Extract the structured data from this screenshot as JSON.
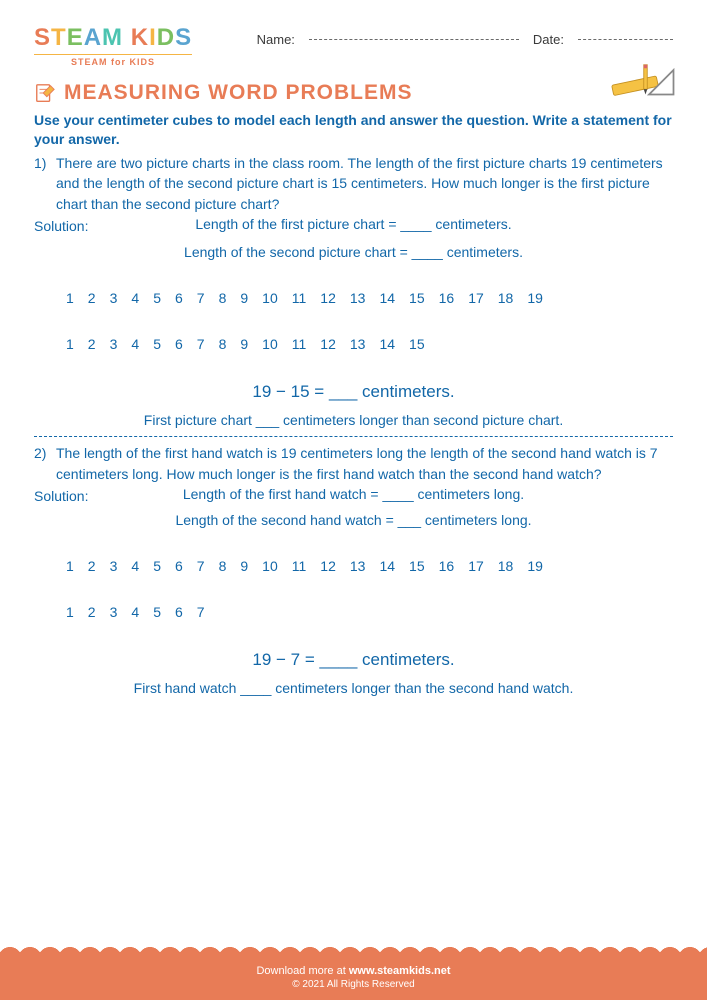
{
  "header": {
    "logo_letters": [
      "S",
      "T",
      "E",
      "A",
      "M",
      " ",
      "K",
      "I",
      "D",
      "S"
    ],
    "logo_sub": "STEAM for KIDS",
    "name_label": "Name:",
    "date_label": "Date:"
  },
  "title": "MEASURING WORD PROBLEMS",
  "instructions": "Use your centimeter cubes to model each length and answer the question. Write a statement for your answer.",
  "problems": [
    {
      "num": "1)",
      "text": "There are two picture charts in the class room. The length of the first picture charts 19 centimeters and the length of the second picture chart is 15 centimeters. How much longer is the first picture chart than the second picture chart?",
      "solution_label": "Solution:",
      "line1": "Length of the first picture chart = ____ centimeters.",
      "line2": "Length of the second picture chart = ____ centimeters.",
      "row1_count": 19,
      "row2_count": 15,
      "eq": "19 − 15 = ___ centimeters.",
      "final": "First picture chart ___ centimeters longer than second picture chart."
    },
    {
      "num": "2)",
      "text": "The length of the first hand watch is 19 centimeters long the length of the second hand watch is 7 centimeters long. How much longer is the first hand watch than the second hand watch?",
      "solution_label": "Solution:",
      "line1": "Length of the first hand watch = ____ centimeters long.",
      "line2": "Length of the second hand watch = ___ centimeters long.",
      "row1_count": 19,
      "row2_count": 7,
      "eq": "19 − 7 = ____ centimeters.",
      "final": "First hand watch ____ centimeters longer than the second hand watch."
    }
  ],
  "footer": {
    "download": "Download more at",
    "site": "www.steamkids.net",
    "copyright": "© 2021 All Rights Reserved"
  },
  "colors": {
    "blue": "#1267a8",
    "orange": "#e87c56",
    "yellow": "#f5b544"
  }
}
